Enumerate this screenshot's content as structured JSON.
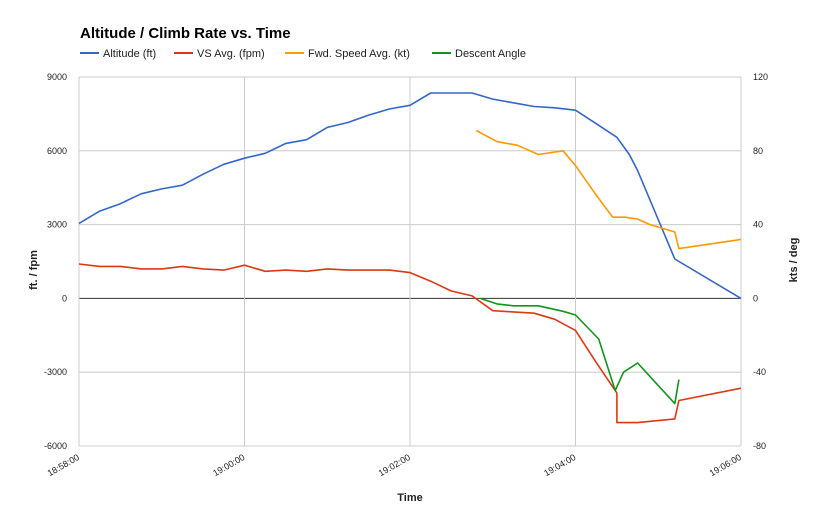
{
  "chart_data": {
    "type": "line",
    "title": "Altitude / Climb Rate vs. Time",
    "xlabel": "Time",
    "ylabel_left": "ft. / fpm",
    "ylabel_right": "kts / deg",
    "x_ticks": [
      "18:58:00",
      "19:00:00",
      "19:02:00",
      "19:04:00",
      "19:06:00"
    ],
    "x_range_minutes": [
      0,
      8
    ],
    "y_left_range": [
      -6000,
      9000
    ],
    "y_left_ticks": [
      "9000",
      "6000",
      "3000",
      "0",
      "-3000",
      "-6000"
    ],
    "y_right_range": [
      -80,
      120
    ],
    "y_right_ticks": [
      "120",
      "80",
      "40",
      "0",
      "-40",
      "-80"
    ],
    "grid": true,
    "legend_position": "top-left",
    "series": [
      {
        "name": "Altitude (ft)",
        "axis": "left",
        "color": "#3366cc",
        "x": [
          0,
          0.25,
          0.5,
          0.75,
          1,
          1.25,
          1.5,
          1.75,
          2,
          2.25,
          2.5,
          2.75,
          3,
          3.25,
          3.5,
          3.75,
          4,
          4.25,
          4.5,
          4.75,
          5,
          5.25,
          5.5,
          5.75,
          6,
          6.25,
          6.5,
          6.65,
          6.75,
          7.2,
          8
        ],
        "values": [
          3050,
          3550,
          3850,
          4250,
          4450,
          4600,
          5050,
          5450,
          5700,
          5900,
          6300,
          6450,
          6950,
          7150,
          7450,
          7700,
          7850,
          8350,
          8350,
          8350,
          8100,
          7950,
          7800,
          7750,
          7650,
          7100,
          6550,
          5850,
          5200,
          1600,
          0
        ]
      },
      {
        "name": "VS Avg. (fpm)",
        "axis": "left",
        "color": "#dc3912",
        "x": [
          0,
          0.25,
          0.5,
          0.75,
          1,
          1.25,
          1.5,
          1.75,
          2,
          2.25,
          2.5,
          2.75,
          3,
          3.25,
          3.5,
          3.75,
          4,
          4.25,
          4.5,
          4.75,
          5,
          5.25,
          5.5,
          5.75,
          6,
          6.25,
          6.5,
          6.5,
          6.65,
          6.75,
          7.2,
          7.25,
          8
        ],
        "values": [
          1400,
          1300,
          1300,
          1200,
          1200,
          1300,
          1200,
          1150,
          1350,
          1100,
          1150,
          1100,
          1200,
          1150,
          1150,
          1150,
          1050,
          700,
          300,
          100,
          -500,
          -550,
          -600,
          -850,
          -1300,
          -2600,
          -3850,
          -5050,
          -5050,
          -5050,
          -4900,
          -4150,
          -3650
        ]
      },
      {
        "name": "Fwd. Speed Avg. (kt)",
        "axis": "right",
        "color": "#ff9900",
        "x": [
          4.8,
          5.05,
          5.3,
          5.55,
          5.85,
          6,
          6.25,
          6.45,
          6.6,
          6.75,
          6.9,
          7.2,
          7.25,
          8
        ],
        "values": [
          91,
          85,
          83,
          78,
          80,
          72,
          56,
          44,
          44,
          43,
          40,
          36,
          27,
          32
        ]
      },
      {
        "name": "Descent Angle",
        "axis": "right",
        "color": "#109618",
        "x": [
          4.85,
          5.05,
          5.25,
          5.55,
          5.85,
          6,
          6.28,
          6.48,
          6.58,
          6.75,
          7.2,
          7.25
        ],
        "values": [
          0,
          -3,
          -4,
          -4,
          -7,
          -9,
          -22,
          -50,
          -40,
          -35,
          -57,
          -44
        ]
      }
    ]
  }
}
